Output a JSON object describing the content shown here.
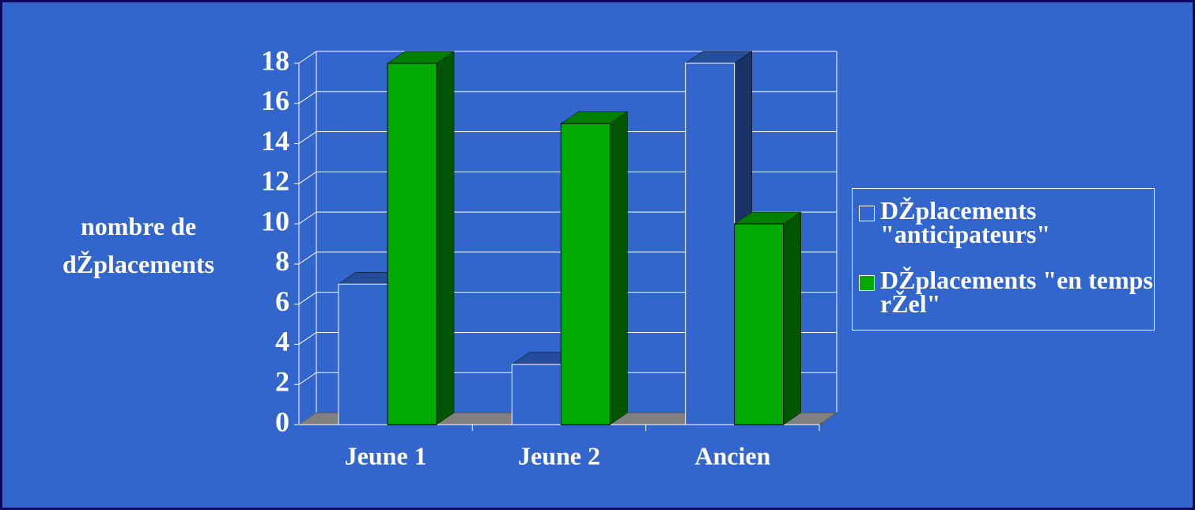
{
  "chart_data": {
    "type": "bar3d",
    "y_label": "nombre de dŽplacements",
    "categories": [
      "Jeune 1",
      "Jeune 2",
      "Ancien"
    ],
    "series": [
      {
        "name": "DŽplacements \"anticipateurs\"",
        "color": "#3366cc",
        "values": [
          7,
          3,
          18
        ]
      },
      {
        "name": "DŽplacements \"en temps rŽel\"",
        "color": "#00aa00",
        "values": [
          18,
          15,
          10
        ]
      }
    ],
    "ylim": [
      0,
      18
    ],
    "yticks": [
      0,
      2,
      4,
      6,
      8,
      10,
      12,
      14,
      16,
      18
    ],
    "grid": true,
    "legend": "right"
  }
}
